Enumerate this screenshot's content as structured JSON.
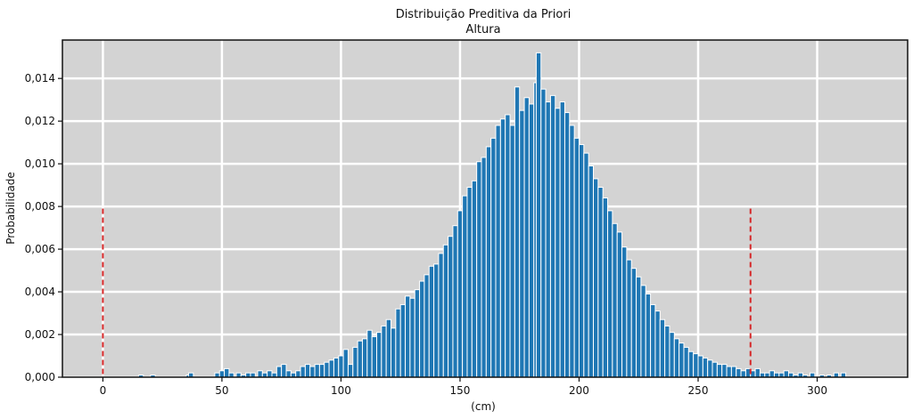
{
  "chart_data": {
    "type": "bar",
    "title": "Distribuição Preditiva da Priori",
    "subtitle": "Altura",
    "xlabel": "(cm)",
    "ylabel": "Probabilidade",
    "xlim": [
      -17,
      338
    ],
    "ylim": [
      0,
      0.0158
    ],
    "xticks": [
      0,
      50,
      100,
      150,
      200,
      250,
      300
    ],
    "yticks": [
      0.0,
      0.002,
      0.004,
      0.006,
      0.008,
      0.01,
      0.012,
      0.014
    ],
    "ytick_labels": [
      "0,000",
      "0,002",
      "0,004",
      "0,006",
      "0,008",
      "0,010",
      "0,012",
      "0,014"
    ],
    "grid": true,
    "bin_width": 2,
    "bars": [
      [
        16,
        0.0001
      ],
      [
        21,
        0.0001
      ],
      [
        36,
        0.0001
      ],
      [
        37,
        0.0002
      ],
      [
        48,
        0.0002
      ],
      [
        50,
        0.0003
      ],
      [
        52,
        0.0004
      ],
      [
        54,
        0.0002
      ],
      [
        57,
        0.0002
      ],
      [
        59,
        0.0001
      ],
      [
        61,
        0.0002
      ],
      [
        63,
        0.0002
      ],
      [
        66,
        0.0003
      ],
      [
        68,
        0.0002
      ],
      [
        70,
        0.0003
      ],
      [
        72,
        0.0002
      ],
      [
        74,
        0.0005
      ],
      [
        76,
        0.0006
      ],
      [
        78,
        0.0003
      ],
      [
        80,
        0.0002
      ],
      [
        82,
        0.0003
      ],
      [
        84,
        0.0005
      ],
      [
        86,
        0.0006
      ],
      [
        88,
        0.0005
      ],
      [
        90,
        0.0006
      ],
      [
        92,
        0.0006
      ],
      [
        94,
        0.0007
      ],
      [
        96,
        0.0008
      ],
      [
        98,
        0.0009
      ],
      [
        100,
        0.001
      ],
      [
        102,
        0.0013
      ],
      [
        104,
        0.0006
      ],
      [
        106,
        0.0014
      ],
      [
        108,
        0.0017
      ],
      [
        110,
        0.0018
      ],
      [
        112,
        0.0022
      ],
      [
        114,
        0.0019
      ],
      [
        116,
        0.0021
      ],
      [
        118,
        0.0024
      ],
      [
        120,
        0.0027
      ],
      [
        122,
        0.0023
      ],
      [
        124,
        0.0032
      ],
      [
        126,
        0.0034
      ],
      [
        128,
        0.0038
      ],
      [
        130,
        0.0037
      ],
      [
        132,
        0.0041
      ],
      [
        134,
        0.0045
      ],
      [
        136,
        0.0048
      ],
      [
        138,
        0.0052
      ],
      [
        140,
        0.0053
      ],
      [
        142,
        0.0058
      ],
      [
        144,
        0.0062
      ],
      [
        146,
        0.0066
      ],
      [
        148,
        0.0071
      ],
      [
        150,
        0.0078
      ],
      [
        152,
        0.0085
      ],
      [
        154,
        0.0089
      ],
      [
        156,
        0.0092
      ],
      [
        158,
        0.0101
      ],
      [
        160,
        0.0103
      ],
      [
        162,
        0.0108
      ],
      [
        164,
        0.0112
      ],
      [
        166,
        0.0118
      ],
      [
        168,
        0.0121
      ],
      [
        170,
        0.0123
      ],
      [
        172,
        0.0118
      ],
      [
        174,
        0.0136
      ],
      [
        176,
        0.0125
      ],
      [
        178,
        0.0131
      ],
      [
        180,
        0.0128
      ],
      [
        182,
        0.0138
      ],
      [
        183,
        0.0152
      ],
      [
        185,
        0.0135
      ],
      [
        187,
        0.0129
      ],
      [
        189,
        0.0132
      ],
      [
        191,
        0.0126
      ],
      [
        193,
        0.0129
      ],
      [
        195,
        0.0124
      ],
      [
        197,
        0.0118
      ],
      [
        199,
        0.0112
      ],
      [
        201,
        0.0109
      ],
      [
        203,
        0.0105
      ],
      [
        205,
        0.0099
      ],
      [
        207,
        0.0093
      ],
      [
        209,
        0.0089
      ],
      [
        211,
        0.0084
      ],
      [
        213,
        0.0078
      ],
      [
        215,
        0.0072
      ],
      [
        217,
        0.0068
      ],
      [
        219,
        0.0061
      ],
      [
        221,
        0.0055
      ],
      [
        223,
        0.0051
      ],
      [
        225,
        0.0047
      ],
      [
        227,
        0.0043
      ],
      [
        229,
        0.0039
      ],
      [
        231,
        0.0034
      ],
      [
        233,
        0.0031
      ],
      [
        235,
        0.0027
      ],
      [
        237,
        0.0024
      ],
      [
        239,
        0.0021
      ],
      [
        241,
        0.0018
      ],
      [
        243,
        0.0016
      ],
      [
        245,
        0.0014
      ],
      [
        247,
        0.0012
      ],
      [
        249,
        0.0011
      ],
      [
        251,
        0.001
      ],
      [
        253,
        0.0009
      ],
      [
        255,
        0.0008
      ],
      [
        257,
        0.0007
      ],
      [
        259,
        0.0006
      ],
      [
        261,
        0.0006
      ],
      [
        263,
        0.0005
      ],
      [
        265,
        0.0005
      ],
      [
        267,
        0.0004
      ],
      [
        269,
        0.0003
      ],
      [
        271,
        0.0004
      ],
      [
        273,
        0.0003
      ],
      [
        275,
        0.0004
      ],
      [
        277,
        0.0002
      ],
      [
        279,
        0.0002
      ],
      [
        281,
        0.0003
      ],
      [
        283,
        0.0002
      ],
      [
        285,
        0.0002
      ],
      [
        287,
        0.0003
      ],
      [
        289,
        0.0002
      ],
      [
        291,
        0.0001
      ],
      [
        293,
        0.0002
      ],
      [
        295,
        0.0001
      ],
      [
        298,
        0.0002
      ],
      [
        302,
        0.0001
      ],
      [
        305,
        0.0001
      ],
      [
        308,
        0.0002
      ],
      [
        311,
        0.0002
      ]
    ],
    "reference_lines": [
      {
        "x": 0,
        "y_top": 0.0079,
        "color": "#d62728",
        "style": "dashed"
      },
      {
        "x": 272,
        "y_top": 0.0079,
        "color": "#d62728",
        "style": "dashed"
      }
    ],
    "colors": {
      "bar_fill": "#1f77b4",
      "bar_edge": "#ffffff",
      "plot_bg": "#d3d3d3",
      "grid": "#ffffff",
      "reference": "#d62728"
    }
  }
}
